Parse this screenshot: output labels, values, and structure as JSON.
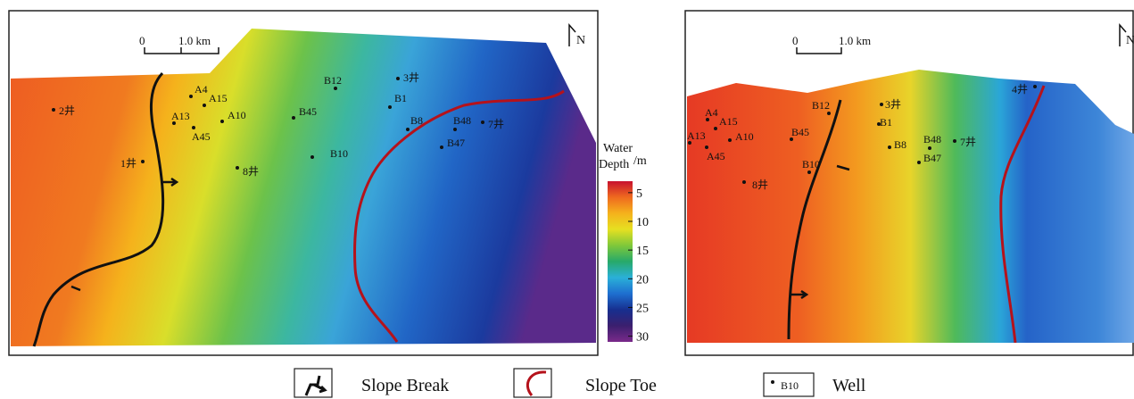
{
  "left_map": {
    "scale_bar": {
      "start": "0",
      "end": "1.0 km"
    },
    "north": "N",
    "wells": [
      "2井",
      "A4",
      "A15",
      "A13",
      "A10",
      "A45",
      "1井",
      "8井",
      "B12",
      "3井",
      "B1",
      "B45",
      "B8",
      "B10",
      "B48",
      "7井",
      "B47"
    ]
  },
  "right_map": {
    "scale_bar": {
      "start": "0",
      "end": "1.0 km"
    },
    "north": "N",
    "wells": [
      "A4",
      "A15",
      "A13",
      "A10",
      "A45",
      "8井",
      "B12",
      "3井",
      "B1",
      "B45",
      "B10",
      "B8",
      "B48",
      "7井",
      "B47",
      "4井"
    ]
  },
  "colorbar": {
    "title_lines": [
      "Water",
      "Depth"
    ],
    "unit": "/m",
    "lim": [
      3,
      31
    ],
    "ticks": [
      5,
      10,
      15,
      20,
      25,
      30
    ],
    "colors": [
      "#c8102e",
      "#ef6a1f",
      "#f5b21c",
      "#e6e021",
      "#7fc83a",
      "#27a96a",
      "#2ab0d8",
      "#1e6fd0",
      "#172f8f",
      "#3b1f6e",
      "#7a2a8a"
    ]
  },
  "legend": {
    "items": [
      "Slope Break",
      "Slope Toe",
      "Well"
    ],
    "well_symbol": "B10"
  }
}
